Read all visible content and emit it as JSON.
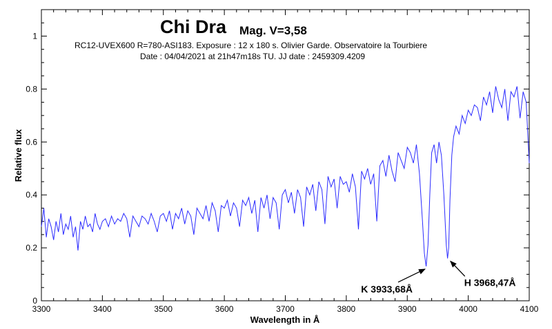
{
  "chart_data": {
    "type": "line",
    "title": "Chi Dra",
    "subtitle": "Mag. V=3,58",
    "info_lines": [
      "RC12-UVEX600 R=780-ASI183. Exposure : 12 x 180 s. Olivier Garde. Observatoire la Tourbiere",
      "Date : 04/04/2021 at 21h47m18s TU. JJ date : 2459309.4209"
    ],
    "xlabel": "Wavelength in Å",
    "ylabel": "Relative flux",
    "xlim": [
      3300,
      4100
    ],
    "ylim": [
      0,
      1.1
    ],
    "x_ticks": [
      3300,
      3400,
      3500,
      3600,
      3700,
      3800,
      3900,
      4000,
      4100
    ],
    "y_ticks": [
      0,
      0.2,
      0.4,
      0.6,
      0.8,
      1
    ],
    "x_tick_labels": [
      "3300",
      "3400",
      "3500",
      "3600",
      "3700",
      "3800",
      "3900",
      "4000",
      "4100"
    ],
    "y_tick_labels": [
      "0",
      "0.2",
      "0.4",
      "0.6",
      "0.8",
      "1"
    ],
    "grid": false,
    "line_color": "#2b2bff",
    "series": [
      {
        "x": [
          3300,
          3304,
          3308,
          3312,
          3316,
          3320,
          3324,
          3328,
          3332,
          3336,
          3340,
          3344,
          3348,
          3352,
          3356,
          3360,
          3364,
          3368,
          3372,
          3376,
          3380,
          3384,
          3388,
          3392,
          3396,
          3400,
          3405,
          3410,
          3415,
          3420,
          3425,
          3430,
          3435,
          3440,
          3445,
          3450,
          3455,
          3460,
          3465,
          3470,
          3475,
          3480,
          3485,
          3490,
          3495,
          3500,
          3505,
          3510,
          3515,
          3520,
          3525,
          3530,
          3535,
          3540,
          3545,
          3550,
          3555,
          3560,
          3565,
          3570,
          3575,
          3580,
          3585,
          3590,
          3595,
          3600,
          3605,
          3610,
          3615,
          3620,
          3625,
          3630,
          3635,
          3640,
          3645,
          3650,
          3655,
          3660,
          3665,
          3670,
          3675,
          3680,
          3685,
          3690,
          3695,
          3700,
          3705,
          3710,
          3715,
          3720,
          3725,
          3730,
          3735,
          3740,
          3745,
          3750,
          3755,
          3760,
          3765,
          3770,
          3775,
          3780,
          3785,
          3790,
          3795,
          3800,
          3805,
          3810,
          3815,
          3820,
          3825,
          3830,
          3835,
          3840,
          3845,
          3850,
          3855,
          3860,
          3865,
          3870,
          3875,
          3880,
          3885,
          3890,
          3895,
          3900,
          3905,
          3910,
          3915,
          3920,
          3925,
          3928,
          3931,
          3934,
          3937,
          3940,
          3944,
          3948,
          3952,
          3956,
          3960,
          3964,
          3966,
          3968,
          3970,
          3973,
          3976,
          3980,
          3985,
          3990,
          3995,
          4000,
          4005,
          4010,
          4015,
          4020,
          4025,
          4030,
          4035,
          4040,
          4045,
          4050,
          4055,
          4060,
          4065,
          4070,
          4075,
          4080,
          4085,
          4090,
          4095,
          4100
        ],
        "y": [
          0.28,
          0.35,
          0.24,
          0.31,
          0.28,
          0.23,
          0.3,
          0.26,
          0.33,
          0.25,
          0.29,
          0.27,
          0.32,
          0.24,
          0.28,
          0.19,
          0.3,
          0.27,
          0.32,
          0.28,
          0.29,
          0.26,
          0.33,
          0.29,
          0.27,
          0.3,
          0.31,
          0.28,
          0.32,
          0.29,
          0.31,
          0.3,
          0.33,
          0.31,
          0.24,
          0.32,
          0.3,
          0.28,
          0.32,
          0.31,
          0.29,
          0.33,
          0.3,
          0.26,
          0.32,
          0.33,
          0.3,
          0.34,
          0.27,
          0.33,
          0.31,
          0.35,
          0.29,
          0.34,
          0.32,
          0.25,
          0.35,
          0.33,
          0.31,
          0.36,
          0.3,
          0.37,
          0.34,
          0.26,
          0.36,
          0.35,
          0.38,
          0.32,
          0.37,
          0.35,
          0.28,
          0.38,
          0.36,
          0.39,
          0.33,
          0.38,
          0.26,
          0.39,
          0.35,
          0.4,
          0.31,
          0.39,
          0.37,
          0.27,
          0.4,
          0.42,
          0.37,
          0.41,
          0.33,
          0.42,
          0.39,
          0.28,
          0.43,
          0.4,
          0.44,
          0.34,
          0.45,
          0.42,
          0.29,
          0.47,
          0.43,
          0.46,
          0.35,
          0.47,
          0.44,
          0.45,
          0.41,
          0.48,
          0.43,
          0.27,
          0.49,
          0.46,
          0.5,
          0.44,
          0.48,
          0.3,
          0.51,
          0.53,
          0.47,
          0.55,
          0.49,
          0.45,
          0.56,
          0.53,
          0.5,
          0.58,
          0.56,
          0.52,
          0.59,
          0.48,
          0.3,
          0.18,
          0.13,
          0.21,
          0.4,
          0.56,
          0.59,
          0.52,
          0.6,
          0.55,
          0.4,
          0.21,
          0.16,
          0.2,
          0.38,
          0.55,
          0.62,
          0.66,
          0.63,
          0.7,
          0.67,
          0.72,
          0.7,
          0.74,
          0.73,
          0.68,
          0.77,
          0.74,
          0.79,
          0.71,
          0.81,
          0.76,
          0.73,
          0.8,
          0.68,
          0.79,
          0.77,
          0.81,
          0.69,
          0.79,
          0.75,
          0.52
        ]
      }
    ],
    "annotations": [
      {
        "text": "K 3933,68Å",
        "x": 3933.68,
        "y": 0.125
      },
      {
        "text": "H 3968,47Å",
        "x": 3968.47,
        "y": 0.155
      }
    ]
  }
}
